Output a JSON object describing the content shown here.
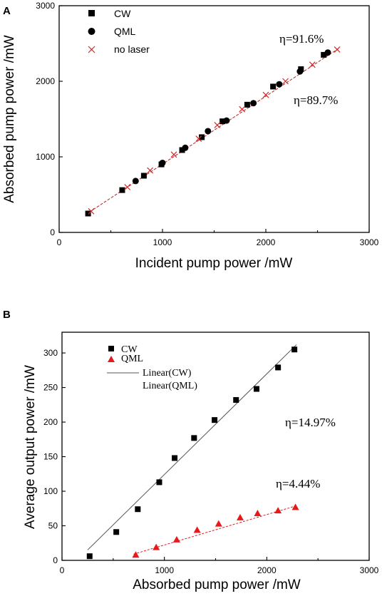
{
  "chart_data": [
    {
      "panel": "A",
      "type": "scatter",
      "xlabel": "Incident pump power /mW",
      "ylabel": "Absorbed pump power /mW",
      "xlim": [
        0,
        3000
      ],
      "ylim": [
        0,
        3000
      ],
      "x_ticks": [
        0,
        1000,
        2000,
        3000
      ],
      "y_ticks": [
        0,
        1000,
        2000,
        3000
      ],
      "legend_position": "top-left",
      "series": [
        {
          "name": "CW",
          "marker": "square",
          "color": "#000000",
          "x": [
            280,
            610,
            820,
            990,
            1190,
            1380,
            1580,
            1820,
            2070,
            2340,
            2560
          ],
          "y": [
            250,
            560,
            750,
            900,
            1090,
            1260,
            1470,
            1690,
            1930,
            2160,
            2350
          ]
        },
        {
          "name": "QML",
          "marker": "circle",
          "color": "#000000",
          "x": [
            740,
            1000,
            1220,
            1440,
            1620,
            1880,
            2130,
            2330,
            2600
          ],
          "y": [
            680,
            920,
            1120,
            1340,
            1480,
            1710,
            1960,
            2130,
            2380
          ]
        },
        {
          "name": "no laser",
          "marker": "cross",
          "color": "#d62728",
          "x": [
            310,
            660,
            880,
            1110,
            1350,
            1530,
            1770,
            2000,
            2190,
            2450,
            2690
          ],
          "y": [
            280,
            600,
            820,
            1030,
            1240,
            1420,
            1630,
            1820,
            2000,
            2220,
            2420
          ]
        }
      ],
      "fits": [
        {
          "color": "#b22222",
          "x": [
            260,
            2700
          ],
          "y": [
            240,
            2430
          ]
        }
      ],
      "annotations": [
        "η=91.6%",
        "η=89.7%"
      ]
    },
    {
      "panel": "B",
      "type": "scatter",
      "xlabel": "Absorbed pump power /mW",
      "ylabel": "Average output power /mW",
      "xlim": [
        0,
        3000
      ],
      "ylim": [
        0,
        330
      ],
      "x_ticks": [
        0,
        1000,
        2000,
        3000
      ],
      "y_ticks": [
        0,
        50,
        100,
        150,
        200,
        250,
        300
      ],
      "legend_position": "top-left",
      "series": [
        {
          "name": "CW",
          "marker": "square",
          "color": "#000000",
          "x": [
            270,
            530,
            740,
            950,
            1100,
            1290,
            1490,
            1700,
            1900,
            2110,
            2270
          ],
          "y": [
            6,
            41,
            74,
            113,
            148,
            177,
            203,
            232,
            248,
            279,
            305
          ]
        },
        {
          "name": "QML",
          "marker": "triangle",
          "color": "#e41a1c",
          "x": [
            720,
            920,
            1120,
            1320,
            1530,
            1740,
            1910,
            2110,
            2280
          ],
          "y": [
            8,
            19,
            30,
            44,
            53,
            62,
            68,
            72,
            77
          ]
        }
      ],
      "fits": [
        {
          "name": "Linear(CW)",
          "color": "#555555",
          "x": [
            250,
            2290
          ],
          "y": [
            15,
            312
          ]
        },
        {
          "name": "Linear(QML)",
          "color": "#e41a1c",
          "x": [
            700,
            2290
          ],
          "y": [
            9,
            79
          ]
        }
      ],
      "legend_lines": [
        "Linear(CW)",
        "Linear(QML)"
      ],
      "annotations": [
        "η=14.97%",
        "η=4.44%"
      ]
    }
  ]
}
